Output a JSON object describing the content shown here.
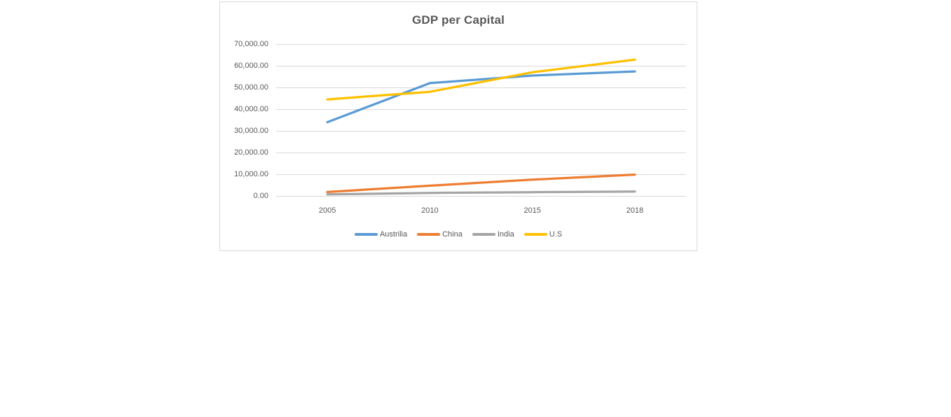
{
  "chart_data": {
    "type": "line",
    "title": "GDP per Capital",
    "categories": [
      "2005",
      "2010",
      "2015",
      "2018"
    ],
    "series": [
      {
        "name": "Austrilia",
        "color": "#5B9BD5",
        "values": [
          34000,
          52000,
          55500,
          57400
        ]
      },
      {
        "name": "China",
        "color": "#ED7D31",
        "values": [
          1800,
          4700,
          7500,
          9800
        ]
      },
      {
        "name": "India",
        "color": "#A5A5A5",
        "values": [
          700,
          1400,
          1700,
          2000
        ]
      },
      {
        "name": "U.S",
        "color": "#FFC000",
        "values": [
          44500,
          48000,
          57000,
          62800
        ]
      }
    ],
    "ylim": [
      0,
      70000
    ],
    "ytick_interval": 10000,
    "ytick_labels": [
      "0.00",
      "10,000.00",
      "20,000.00",
      "30,000.00",
      "40,000.00",
      "50,000.00",
      "60,000.00",
      "70,000.00"
    ],
    "grid": "horizontal",
    "legend_position": "bottom"
  },
  "colors": {
    "title_text": "#595959",
    "axis_text": "#595959",
    "gridline": "#D9D9D9",
    "chart_border": "#D9D9D9",
    "background": "#FFFFFF"
  }
}
